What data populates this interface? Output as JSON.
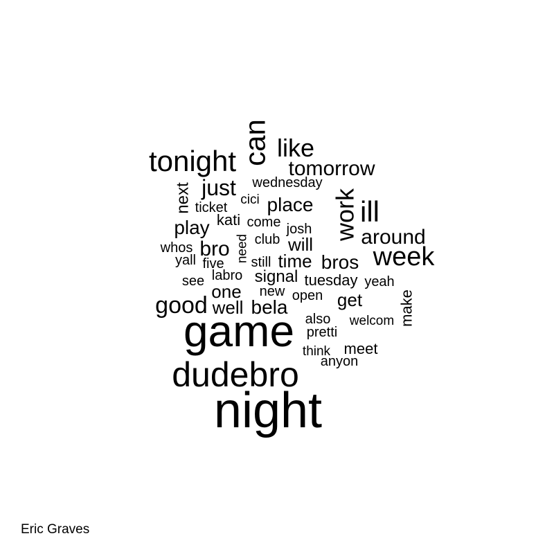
{
  "chart_data": {
    "type": "wordcloud",
    "words": [
      {
        "text": "night",
        "rotated": false
      },
      {
        "text": "game",
        "rotated": false
      },
      {
        "text": "dudebro",
        "rotated": false
      },
      {
        "text": "tonight",
        "rotated": false
      },
      {
        "text": "can",
        "rotated": true
      },
      {
        "text": "week",
        "rotated": false
      },
      {
        "text": "ill",
        "rotated": false
      },
      {
        "text": "like",
        "rotated": false
      },
      {
        "text": "work",
        "rotated": true
      },
      {
        "text": "good",
        "rotated": false
      },
      {
        "text": "tomorrow",
        "rotated": false
      },
      {
        "text": "just",
        "rotated": false
      },
      {
        "text": "around",
        "rotated": false
      },
      {
        "text": "place",
        "rotated": false
      },
      {
        "text": "bros",
        "rotated": false
      },
      {
        "text": "bro",
        "rotated": false
      },
      {
        "text": "play",
        "rotated": false
      },
      {
        "text": "bela",
        "rotated": false
      },
      {
        "text": "well",
        "rotated": false
      },
      {
        "text": "one",
        "rotated": false
      },
      {
        "text": "time",
        "rotated": false
      },
      {
        "text": "will",
        "rotated": false
      },
      {
        "text": "get",
        "rotated": false
      },
      {
        "text": "next",
        "rotated": true
      },
      {
        "text": "signal",
        "rotated": false
      },
      {
        "text": "make",
        "rotated": true
      },
      {
        "text": "tuesday",
        "rotated": false
      },
      {
        "text": "meet",
        "rotated": false
      },
      {
        "text": "wednesday",
        "rotated": false
      },
      {
        "text": "ticket",
        "rotated": false
      },
      {
        "text": "kati",
        "rotated": false
      },
      {
        "text": "cici",
        "rotated": false
      },
      {
        "text": "come",
        "rotated": false
      },
      {
        "text": "josh",
        "rotated": false
      },
      {
        "text": "club",
        "rotated": false
      },
      {
        "text": "whos",
        "rotated": false
      },
      {
        "text": "need",
        "rotated": true
      },
      {
        "text": "yall",
        "rotated": false
      },
      {
        "text": "five",
        "rotated": false
      },
      {
        "text": "still",
        "rotated": false
      },
      {
        "text": "labro",
        "rotated": false
      },
      {
        "text": "see",
        "rotated": false
      },
      {
        "text": "new",
        "rotated": false
      },
      {
        "text": "open",
        "rotated": false
      },
      {
        "text": "yeah",
        "rotated": false
      },
      {
        "text": "also",
        "rotated": false
      },
      {
        "text": "welcom",
        "rotated": false
      },
      {
        "text": "pretti",
        "rotated": false
      },
      {
        "text": "think",
        "rotated": false
      },
      {
        "text": "anyon",
        "rotated": false
      }
    ]
  },
  "caption": "Eric Graves"
}
